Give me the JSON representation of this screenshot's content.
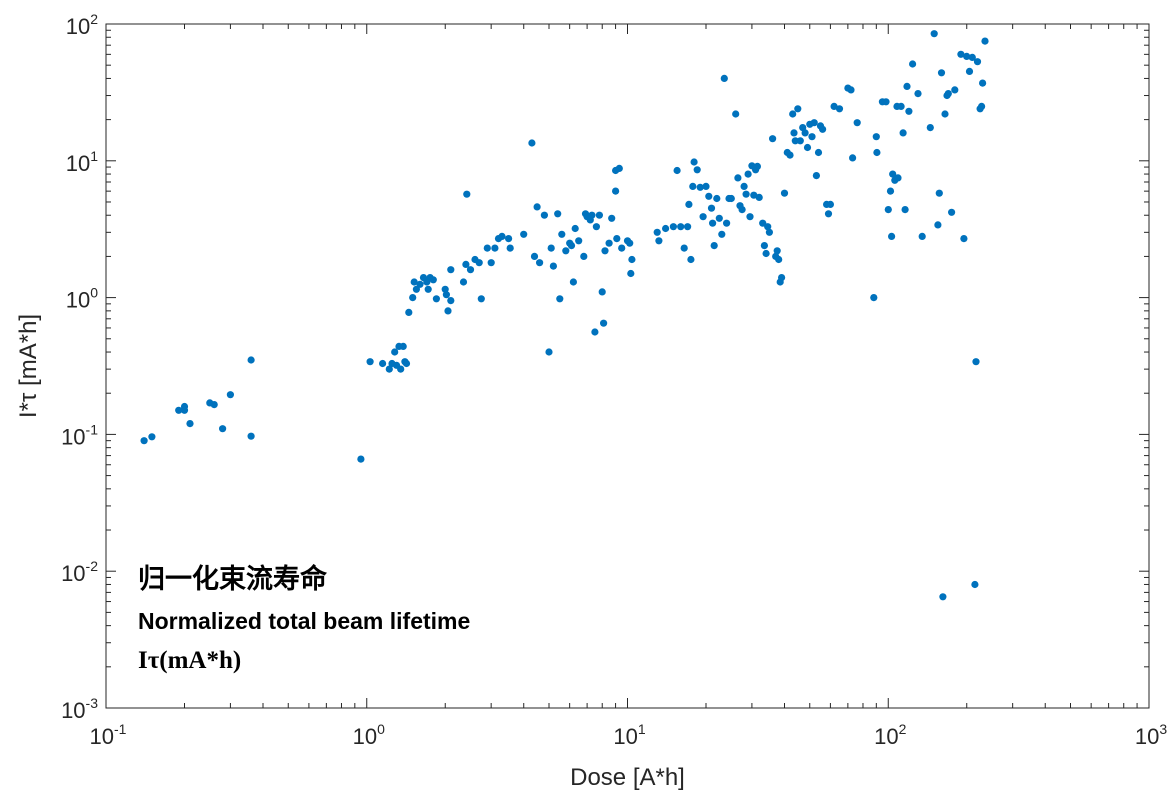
{
  "chart_data": {
    "type": "scatter",
    "xlabel": "Dose [A*h]",
    "ylabel": "I*τ [mA*h]",
    "xscale": "log",
    "yscale": "log",
    "xlim": [
      0.1,
      1000
    ],
    "ylim": [
      0.001,
      100
    ],
    "x_ticks": [
      {
        "base": "10",
        "exp": "-1"
      },
      {
        "base": "10",
        "exp": "0"
      },
      {
        "base": "10",
        "exp": "1"
      },
      {
        "base": "10",
        "exp": "2"
      },
      {
        "base": "10",
        "exp": "3"
      }
    ],
    "y_ticks": [
      {
        "base": "10",
        "exp": "-3"
      },
      {
        "base": "10",
        "exp": "-2"
      },
      {
        "base": "10",
        "exp": "-1"
      },
      {
        "base": "10",
        "exp": "0"
      },
      {
        "base": "10",
        "exp": "1"
      },
      {
        "base": "10",
        "exp": "2"
      }
    ],
    "grid": false,
    "marker_color": "#0072BD",
    "annotation": {
      "line1": "归一化束流寿命",
      "line2": "Normalized total beam lifetime",
      "line3": "Iτ(mA*h)"
    },
    "points": [
      {
        "x": 0.14,
        "y": 0.09
      },
      {
        "x": 0.15,
        "y": 0.096
      },
      {
        "x": 0.19,
        "y": 0.15
      },
      {
        "x": 0.2,
        "y": 0.16
      },
      {
        "x": 0.2,
        "y": 0.15
      },
      {
        "x": 0.21,
        "y": 0.12
      },
      {
        "x": 0.25,
        "y": 0.17
      },
      {
        "x": 0.26,
        "y": 0.165
      },
      {
        "x": 0.28,
        "y": 0.11
      },
      {
        "x": 0.3,
        "y": 0.195
      },
      {
        "x": 0.36,
        "y": 0.35
      },
      {
        "x": 0.36,
        "y": 0.097
      },
      {
        "x": 0.95,
        "y": 0.066
      },
      {
        "x": 1.03,
        "y": 0.34
      },
      {
        "x": 1.15,
        "y": 0.33
      },
      {
        "x": 1.22,
        "y": 0.3
      },
      {
        "x": 1.25,
        "y": 0.33
      },
      {
        "x": 1.28,
        "y": 0.4
      },
      {
        "x": 1.3,
        "y": 0.32
      },
      {
        "x": 1.33,
        "y": 0.44
      },
      {
        "x": 1.35,
        "y": 0.3
      },
      {
        "x": 1.38,
        "y": 0.44
      },
      {
        "x": 1.4,
        "y": 0.34
      },
      {
        "x": 1.42,
        "y": 0.33
      },
      {
        "x": 1.45,
        "y": 0.78
      },
      {
        "x": 1.5,
        "y": 1.0
      },
      {
        "x": 1.52,
        "y": 1.3
      },
      {
        "x": 1.55,
        "y": 1.15
      },
      {
        "x": 1.6,
        "y": 1.25
      },
      {
        "x": 1.65,
        "y": 1.4
      },
      {
        "x": 1.7,
        "y": 1.3
      },
      {
        "x": 1.72,
        "y": 1.15
      },
      {
        "x": 1.75,
        "y": 1.4
      },
      {
        "x": 1.8,
        "y": 1.35
      },
      {
        "x": 1.85,
        "y": 0.98
      },
      {
        "x": 2.0,
        "y": 1.15
      },
      {
        "x": 2.02,
        "y": 1.05
      },
      {
        "x": 2.05,
        "y": 0.8
      },
      {
        "x": 2.1,
        "y": 0.95
      },
      {
        "x": 2.1,
        "y": 1.6
      },
      {
        "x": 2.35,
        "y": 1.3
      },
      {
        "x": 2.4,
        "y": 1.75
      },
      {
        "x": 2.42,
        "y": 5.7
      },
      {
        "x": 2.5,
        "y": 1.6
      },
      {
        "x": 2.6,
        "y": 1.9
      },
      {
        "x": 2.7,
        "y": 1.8
      },
      {
        "x": 2.75,
        "y": 0.98
      },
      {
        "x": 2.9,
        "y": 2.3
      },
      {
        "x": 3.0,
        "y": 1.8
      },
      {
        "x": 3.1,
        "y": 2.3
      },
      {
        "x": 3.2,
        "y": 2.7
      },
      {
        "x": 3.3,
        "y": 2.8
      },
      {
        "x": 3.5,
        "y": 2.7
      },
      {
        "x": 3.55,
        "y": 2.3
      },
      {
        "x": 4.0,
        "y": 2.9
      },
      {
        "x": 4.3,
        "y": 13.5
      },
      {
        "x": 4.4,
        "y": 2.0
      },
      {
        "x": 4.5,
        "y": 4.6
      },
      {
        "x": 4.6,
        "y": 1.8
      },
      {
        "x": 4.8,
        "y": 4.0
      },
      {
        "x": 5.0,
        "y": 0.4
      },
      {
        "x": 5.1,
        "y": 2.3
      },
      {
        "x": 5.2,
        "y": 1.7
      },
      {
        "x": 5.4,
        "y": 4.1
      },
      {
        "x": 5.5,
        "y": 0.98
      },
      {
        "x": 5.6,
        "y": 2.9
      },
      {
        "x": 5.8,
        "y": 2.2
      },
      {
        "x": 6.0,
        "y": 2.5
      },
      {
        "x": 6.1,
        "y": 2.4
      },
      {
        "x": 6.2,
        "y": 1.3
      },
      {
        "x": 6.3,
        "y": 3.2
      },
      {
        "x": 6.5,
        "y": 2.6
      },
      {
        "x": 6.8,
        "y": 2.0
      },
      {
        "x": 6.9,
        "y": 4.1
      },
      {
        "x": 7.0,
        "y": 3.9
      },
      {
        "x": 7.2,
        "y": 3.7
      },
      {
        "x": 7.3,
        "y": 4.0
      },
      {
        "x": 7.5,
        "y": 0.56
      },
      {
        "x": 7.6,
        "y": 3.3
      },
      {
        "x": 7.8,
        "y": 4.0
      },
      {
        "x": 8.0,
        "y": 1.1
      },
      {
        "x": 8.1,
        "y": 0.65
      },
      {
        "x": 8.2,
        "y": 2.2
      },
      {
        "x": 8.5,
        "y": 2.5
      },
      {
        "x": 8.7,
        "y": 3.8
      },
      {
        "x": 9.0,
        "y": 6.0
      },
      {
        "x": 9.0,
        "y": 8.5
      },
      {
        "x": 9.1,
        "y": 2.7
      },
      {
        "x": 9.3,
        "y": 8.8
      },
      {
        "x": 9.5,
        "y": 2.3
      },
      {
        "x": 10.0,
        "y": 2.6
      },
      {
        "x": 10.2,
        "y": 2.5
      },
      {
        "x": 10.3,
        "y": 1.5
      },
      {
        "x": 10.4,
        "y": 1.9
      },
      {
        "x": 13.0,
        "y": 3.0
      },
      {
        "x": 13.2,
        "y": 2.6
      },
      {
        "x": 14.0,
        "y": 3.2
      },
      {
        "x": 15.0,
        "y": 3.3
      },
      {
        "x": 15.5,
        "y": 8.5
      },
      {
        "x": 16.0,
        "y": 3.3
      },
      {
        "x": 16.5,
        "y": 2.3
      },
      {
        "x": 17.0,
        "y": 3.3
      },
      {
        "x": 17.2,
        "y": 4.8
      },
      {
        "x": 17.5,
        "y": 1.9
      },
      {
        "x": 17.8,
        "y": 6.5
      },
      {
        "x": 18.0,
        "y": 9.8
      },
      {
        "x": 18.5,
        "y": 8.6
      },
      {
        "x": 19.0,
        "y": 6.4
      },
      {
        "x": 19.5,
        "y": 3.9
      },
      {
        "x": 20.0,
        "y": 6.5
      },
      {
        "x": 20.5,
        "y": 5.5
      },
      {
        "x": 21.0,
        "y": 4.5
      },
      {
        "x": 21.2,
        "y": 3.5
      },
      {
        "x": 21.5,
        "y": 2.4
      },
      {
        "x": 22.0,
        "y": 5.3
      },
      {
        "x": 22.5,
        "y": 3.8
      },
      {
        "x": 23.0,
        "y": 2.9
      },
      {
        "x": 23.5,
        "y": 40.0
      },
      {
        "x": 24.0,
        "y": 3.5
      },
      {
        "x": 24.5,
        "y": 5.3
      },
      {
        "x": 25.0,
        "y": 5.3
      },
      {
        "x": 26.0,
        "y": 22.0
      },
      {
        "x": 26.5,
        "y": 7.5
      },
      {
        "x": 27.0,
        "y": 4.7
      },
      {
        "x": 27.5,
        "y": 4.4
      },
      {
        "x": 28.0,
        "y": 6.5
      },
      {
        "x": 28.5,
        "y": 5.7
      },
      {
        "x": 29.0,
        "y": 8.0
      },
      {
        "x": 29.5,
        "y": 3.9
      },
      {
        "x": 30.0,
        "y": 9.2
      },
      {
        "x": 30.5,
        "y": 5.6
      },
      {
        "x": 31.0,
        "y": 8.6
      },
      {
        "x": 31.5,
        "y": 9.1
      },
      {
        "x": 32.0,
        "y": 5.4
      },
      {
        "x": 33.0,
        "y": 3.5
      },
      {
        "x": 33.5,
        "y": 2.4
      },
      {
        "x": 34.0,
        "y": 2.1
      },
      {
        "x": 34.5,
        "y": 3.3
      },
      {
        "x": 35.0,
        "y": 3.0
      },
      {
        "x": 36.0,
        "y": 14.5
      },
      {
        "x": 37.0,
        "y": 2.0
      },
      {
        "x": 37.5,
        "y": 2.2
      },
      {
        "x": 38.0,
        "y": 1.9
      },
      {
        "x": 38.5,
        "y": 1.3
      },
      {
        "x": 39.0,
        "y": 1.4
      },
      {
        "x": 40.0,
        "y": 5.8
      },
      {
        "x": 41.0,
        "y": 11.5
      },
      {
        "x": 42.0,
        "y": 11.0
      },
      {
        "x": 43.0,
        "y": 22.0
      },
      {
        "x": 43.5,
        "y": 16.0
      },
      {
        "x": 44.0,
        "y": 14.0
      },
      {
        "x": 45.0,
        "y": 24.0
      },
      {
        "x": 46.0,
        "y": 14.0
      },
      {
        "x": 47.0,
        "y": 17.5
      },
      {
        "x": 48.0,
        "y": 16.0
      },
      {
        "x": 49.0,
        "y": 12.5
      },
      {
        "x": 50.0,
        "y": 18.5
      },
      {
        "x": 51.0,
        "y": 15.0
      },
      {
        "x": 52.0,
        "y": 19.0
      },
      {
        "x": 53.0,
        "y": 7.8
      },
      {
        "x": 54.0,
        "y": 11.5
      },
      {
        "x": 55.0,
        "y": 18.0
      },
      {
        "x": 56.0,
        "y": 17.0
      },
      {
        "x": 58.0,
        "y": 4.8
      },
      {
        "x": 59.0,
        "y": 4.1
      },
      {
        "x": 60.0,
        "y": 4.8
      },
      {
        "x": 62.0,
        "y": 25.0
      },
      {
        "x": 65.0,
        "y": 24.0
      },
      {
        "x": 70.0,
        "y": 34.0
      },
      {
        "x": 72.0,
        "y": 33.0
      },
      {
        "x": 73.0,
        "y": 10.5
      },
      {
        "x": 76.0,
        "y": 19.0
      },
      {
        "x": 88.0,
        "y": 1.0
      },
      {
        "x": 90.0,
        "y": 15.0
      },
      {
        "x": 90.5,
        "y": 11.5
      },
      {
        "x": 95.0,
        "y": 27.0
      },
      {
        "x": 98.0,
        "y": 27.0
      },
      {
        "x": 100.0,
        "y": 4.4
      },
      {
        "x": 102.0,
        "y": 6.0
      },
      {
        "x": 103.0,
        "y": 2.8
      },
      {
        "x": 104.0,
        "y": 8.0
      },
      {
        "x": 106.0,
        "y": 7.2
      },
      {
        "x": 108.0,
        "y": 25.0
      },
      {
        "x": 109.0,
        "y": 7.5
      },
      {
        "x": 112.0,
        "y": 25.0
      },
      {
        "x": 114.0,
        "y": 16.0
      },
      {
        "x": 116.0,
        "y": 4.4
      },
      {
        "x": 118.0,
        "y": 35.0
      },
      {
        "x": 120.0,
        "y": 23.0
      },
      {
        "x": 124.0,
        "y": 51.0
      },
      {
        "x": 130.0,
        "y": 31.0
      },
      {
        "x": 135.0,
        "y": 2.8
      },
      {
        "x": 145.0,
        "y": 17.5
      },
      {
        "x": 150.0,
        "y": 85.0
      },
      {
        "x": 155.0,
        "y": 3.4
      },
      {
        "x": 157.0,
        "y": 5.8
      },
      {
        "x": 160.0,
        "y": 44.0
      },
      {
        "x": 162.0,
        "y": 0.0065
      },
      {
        "x": 165.0,
        "y": 22.0
      },
      {
        "x": 168.0,
        "y": 30.0
      },
      {
        "x": 170.0,
        "y": 31.0
      },
      {
        "x": 175.0,
        "y": 4.2
      },
      {
        "x": 180.0,
        "y": 33.0
      },
      {
        "x": 190.0,
        "y": 60.0
      },
      {
        "x": 195.0,
        "y": 2.7
      },
      {
        "x": 200.0,
        "y": 58.0
      },
      {
        "x": 205.0,
        "y": 45.0
      },
      {
        "x": 210.0,
        "y": 57.0
      },
      {
        "x": 215.0,
        "y": 0.008
      },
      {
        "x": 217.0,
        "y": 0.34
      },
      {
        "x": 220.0,
        "y": 53.0
      },
      {
        "x": 225.0,
        "y": 24.0
      },
      {
        "x": 228.0,
        "y": 25.0
      },
      {
        "x": 230.0,
        "y": 37.0
      },
      {
        "x": 235.0,
        "y": 75.0
      }
    ]
  }
}
